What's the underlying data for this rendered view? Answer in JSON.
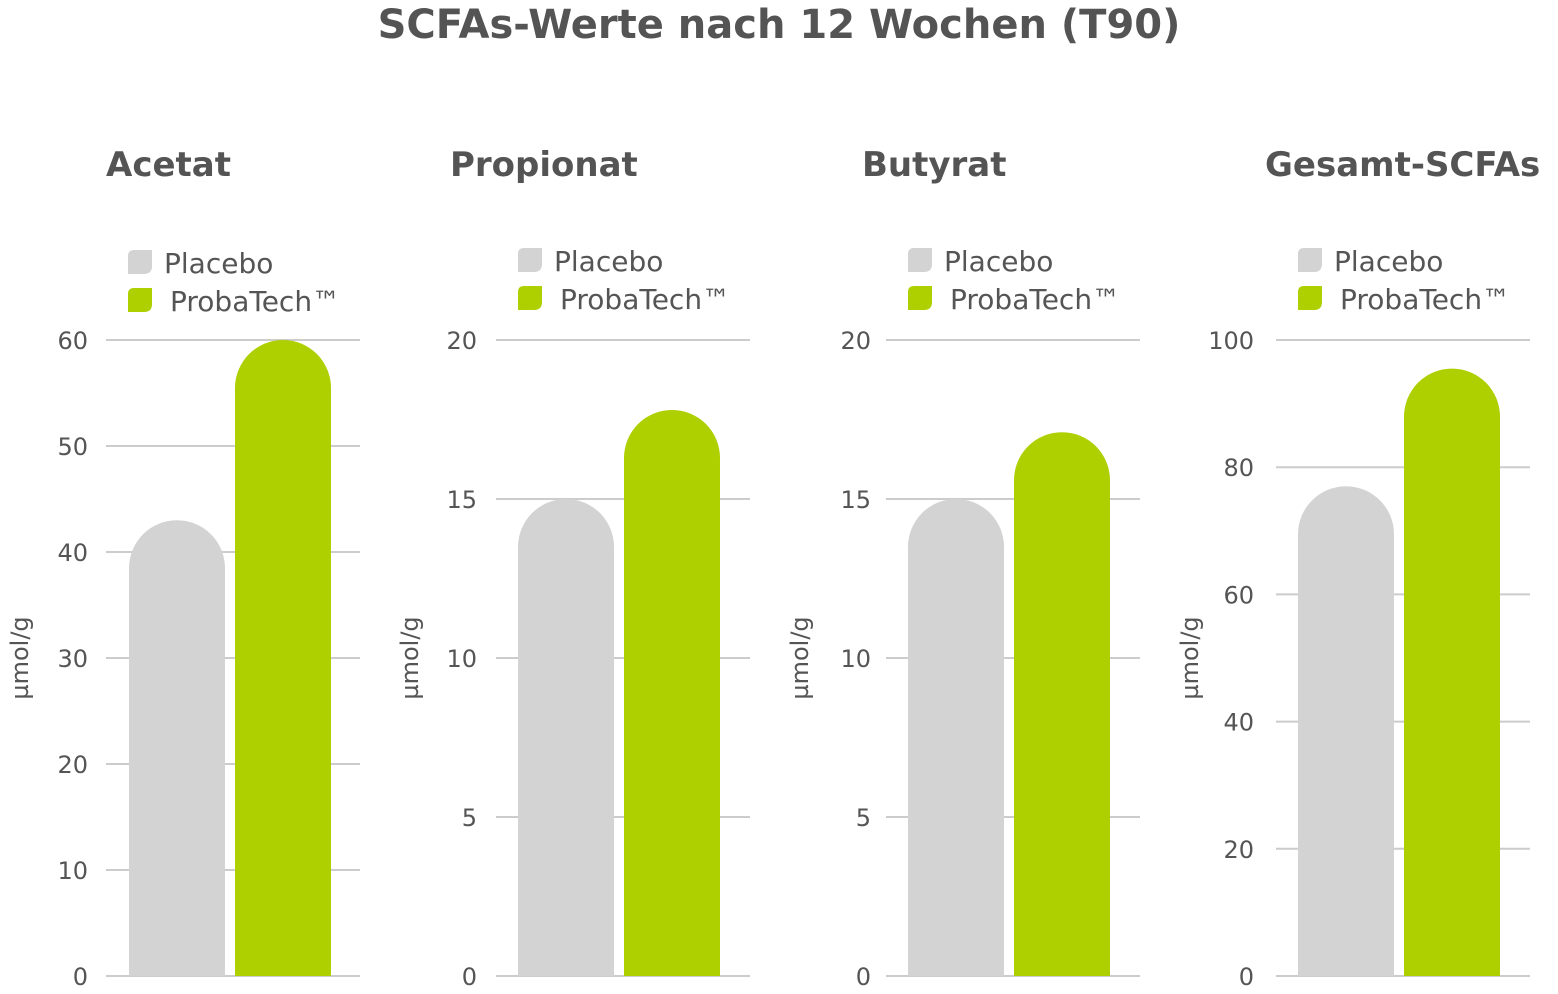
{
  "title": "SCFAs-Werte nach 12 Wochen (T90)",
  "colors": {
    "placebo": "#d3d3d3",
    "probatech": "#aecf00",
    "grid": "#cccccc",
    "text": "#555555",
    "title": "#545454"
  },
  "legend": [
    "Placebo",
    "ProbaTech™"
  ],
  "chart_data": [
    {
      "type": "bar",
      "title": "Acetat",
      "ylabel": "µmol/g",
      "categories": [
        "Placebo",
        "ProbaTech™"
      ],
      "values": [
        43,
        60
      ],
      "ylim": [
        0,
        60
      ],
      "yticks": [
        "0",
        "10",
        "20",
        "30",
        "40",
        "50",
        "60"
      ],
      "grid": true,
      "legend_position": "top-left"
    },
    {
      "type": "bar",
      "title": "Propionat",
      "ylabel": "µmol/g",
      "categories": [
        "Placebo",
        "ProbaTech™"
      ],
      "values": [
        15,
        17.8
      ],
      "ylim": [
        0,
        20
      ],
      "yticks": [
        "0",
        "5",
        "10",
        "15",
        "20"
      ],
      "grid": true,
      "legend_position": "top-left"
    },
    {
      "type": "bar",
      "title": "Butyrat",
      "ylabel": "µmol/g",
      "categories": [
        "Placebo",
        "ProbaTech™"
      ],
      "values": [
        15,
        17.1
      ],
      "ylim": [
        0,
        20
      ],
      "yticks": [
        "0",
        "5",
        "10",
        "15",
        "20"
      ],
      "grid": true,
      "legend_position": "top-left"
    },
    {
      "type": "bar",
      "title": "Gesamt-SCFAs",
      "ylabel": "µmol/g",
      "categories": [
        "Placebo",
        "ProbaTech™"
      ],
      "values": [
        77,
        95.5
      ],
      "ylim": [
        0,
        100
      ],
      "yticks": [
        "0",
        "20",
        "40",
        "60",
        "80",
        "100"
      ],
      "grid": true,
      "legend_position": "top-left"
    }
  ]
}
